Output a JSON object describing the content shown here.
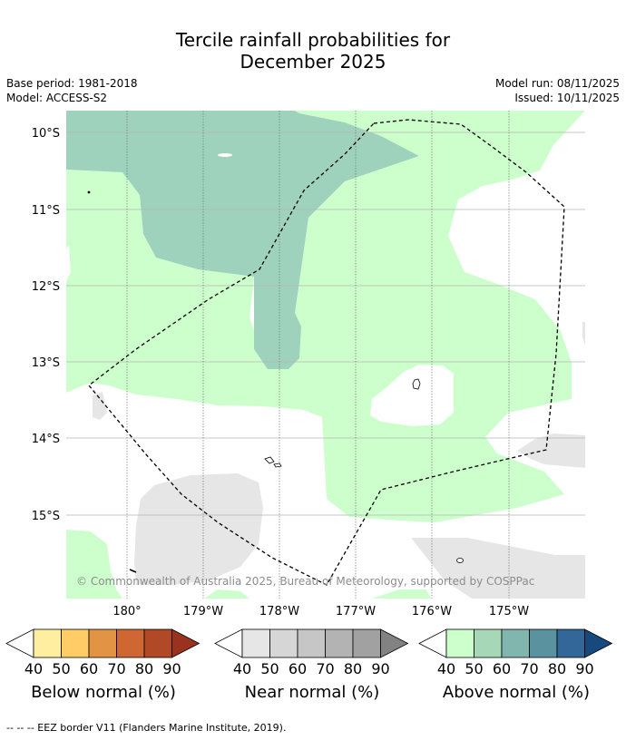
{
  "title": {
    "line1": "Tercile rainfall probabilities for",
    "line2": "December 2025"
  },
  "meta": {
    "base_period": "Base period: 1981-2018",
    "model": "Model: ACCESS-S2",
    "model_run": "Model run: 08/11/2025",
    "issued": "Issued: 10/11/2025"
  },
  "map": {
    "lat_labels": [
      "10°S",
      "11°S",
      "12°S",
      "13°S",
      "14°S",
      "15°S"
    ],
    "lon_labels": [
      "180°",
      "179°W",
      "178°W",
      "177°W",
      "176°W",
      "175°W"
    ],
    "copyright": "© Commonwealth of Australia 2025, Bureau of Meteorology, supported by COSPPac",
    "colors": {
      "above_40": "#ccffcc",
      "above_50": "#9ed2bc",
      "near_40": "#e6e6e6",
      "land": "#ffffff"
    }
  },
  "colorbars": [
    {
      "name": "below",
      "title": "Below normal (%)",
      "ticks": [
        "40",
        "50",
        "60",
        "70",
        "80",
        "90"
      ],
      "colors": [
        "#ffeea0",
        "#ffcc66",
        "#e29444",
        "#cf6733",
        "#b14826",
        "#9a3220"
      ]
    },
    {
      "name": "near",
      "title": "Near normal (%)",
      "ticks": [
        "40",
        "50",
        "60",
        "70",
        "80",
        "90"
      ],
      "colors": [
        "#e6e6e6",
        "#d6d6d6",
        "#c6c6c6",
        "#b3b3b3",
        "#a1a1a1",
        "#828282"
      ]
    },
    {
      "name": "above",
      "title": "Above normal (%)",
      "ticks": [
        "40",
        "50",
        "60",
        "70",
        "80",
        "90"
      ],
      "colors": [
        "#ccffcc",
        "#a6d8b8",
        "#80b6ae",
        "#5b92a0",
        "#336699",
        "#16497e"
      ]
    }
  ],
  "footer": "--  --  -- EEZ border V11 (Flanders Marine Institute, 2019)."
}
